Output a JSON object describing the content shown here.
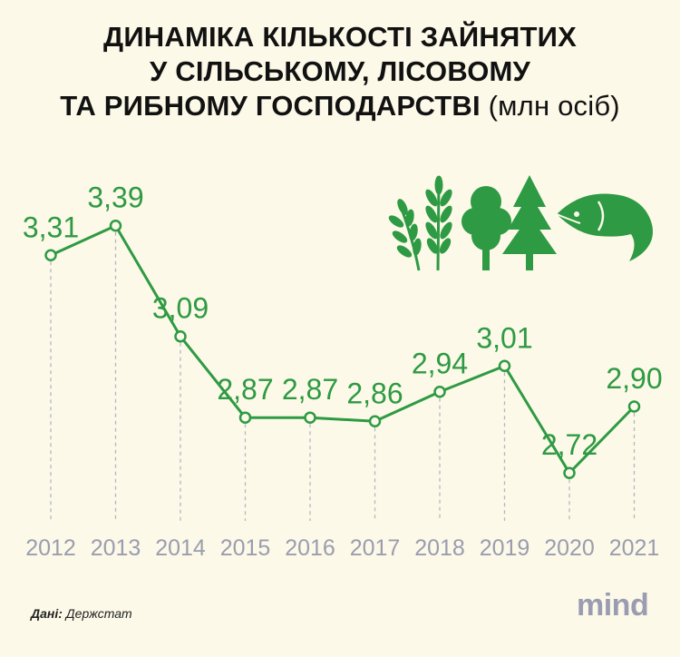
{
  "title": {
    "line1": "ДИНАМІКА КІЛЬКОСТІ ЗАЙНЯТИХ",
    "line2": "У СІЛЬСЬКОМУ, ЛІСОВОМУ",
    "line3": "ТА РИБНОМУ ГОСПОДАРСТВІ",
    "unit": "(млн осіб)"
  },
  "chart_data": {
    "type": "line",
    "title": "ДИНАМІКА КІЛЬКОСТІ ЗАЙНЯТИХ У СІЛЬСЬКОМУ, ЛІСОВОМУ ТА РИБНОМУ ГОСПОДАРСТВІ",
    "categories": [
      "2012",
      "2013",
      "2014",
      "2015",
      "2016",
      "2017",
      "2018",
      "2019",
      "2020",
      "2021"
    ],
    "values": [
      3.31,
      3.39,
      3.09,
      2.87,
      2.87,
      2.86,
      2.94,
      3.01,
      2.72,
      2.9
    ],
    "value_labels": [
      "3,31",
      "3,39",
      "3,09",
      "2,87",
      "2,87",
      "2,86",
      "2,94",
      "3,01",
      "2,72",
      "2,90"
    ],
    "xlabel": "",
    "ylabel": "",
    "ylim": [
      2.6,
      3.5
    ],
    "grid": false,
    "colors": {
      "line": "#2e9a43",
      "ticks": "#9a9dae",
      "dropline": "#b3b6c4"
    }
  },
  "icons": [
    "wheat-icon",
    "wheat-icon",
    "deciduous-tree-icon",
    "fir-tree-icon",
    "fish-icon"
  ],
  "source": {
    "label": "Дані:",
    "value": "Держстат"
  },
  "brand": "mind"
}
